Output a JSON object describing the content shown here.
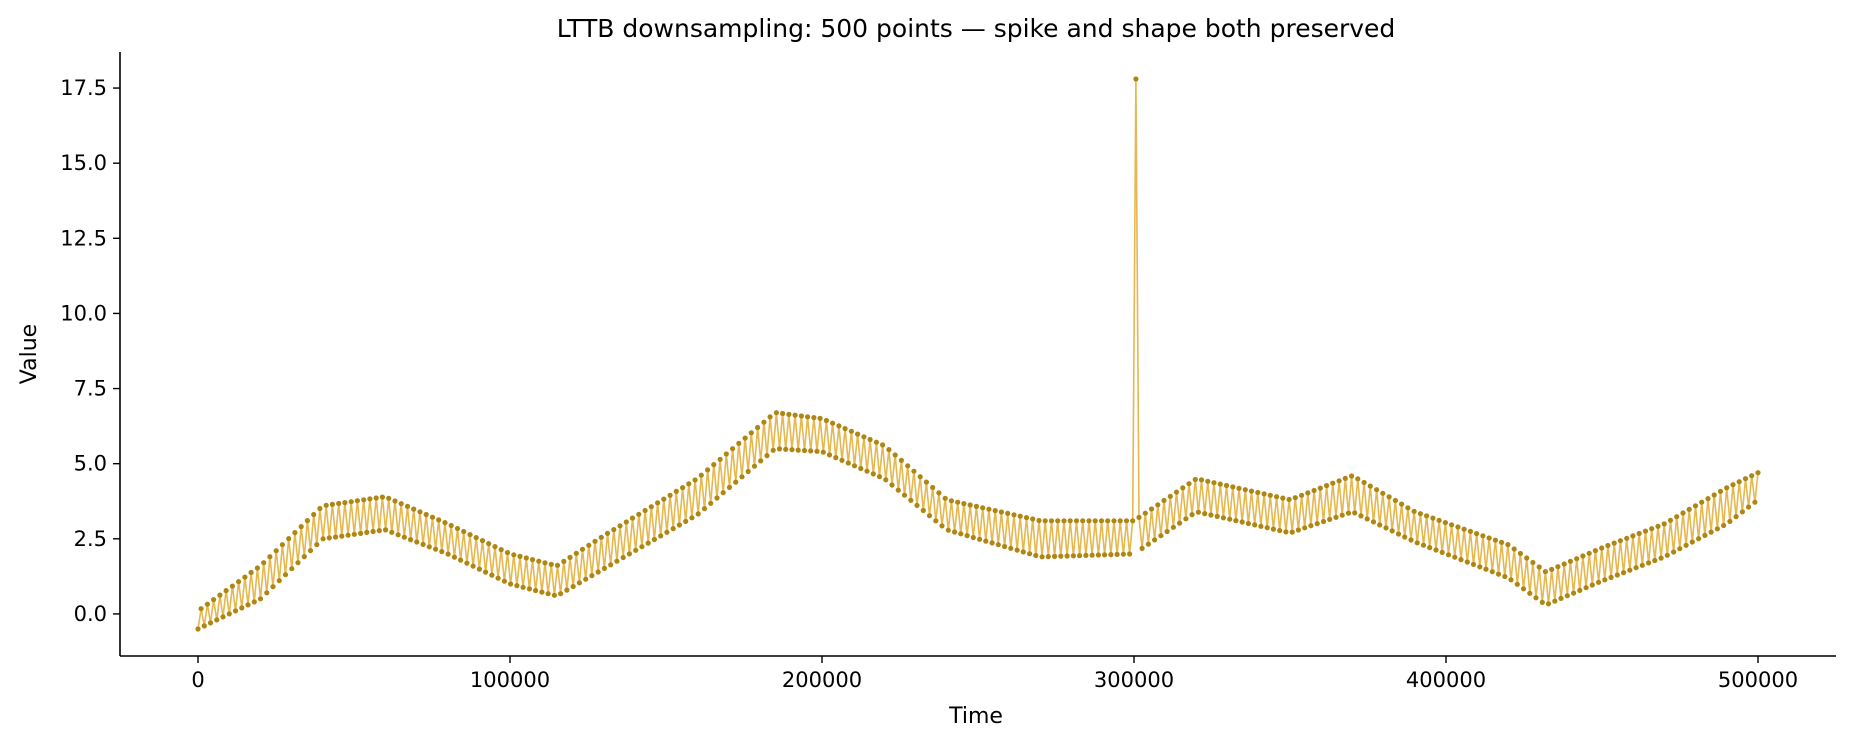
{
  "chart_data": {
    "type": "line",
    "title": "LTTB downsampling: 500 points — spike and shape both preserved",
    "xlabel": "Time",
    "ylabel": "Value",
    "xlim": [
      -25000,
      525000
    ],
    "ylim": [
      -1.4,
      18.7
    ],
    "xticks": [
      0,
      100000,
      200000,
      300000,
      400000,
      500000
    ],
    "xtick_labels": [
      "0",
      "100000",
      "200000",
      "300000",
      "400000",
      "500000"
    ],
    "yticks": [
      0.0,
      2.5,
      5.0,
      7.5,
      10.0,
      12.5,
      15.0,
      17.5
    ],
    "ytick_labels": [
      "0.0",
      "2.5",
      "5.0",
      "7.5",
      "10.0",
      "12.5",
      "15.0",
      "17.5"
    ],
    "grid": false,
    "legend": "none",
    "colors": {
      "line": "#e6b84f",
      "marker": "#b08612"
    },
    "series": [
      {
        "values": {
          "x_start": 0,
          "x_end": 500000,
          "n_points": 500,
          "spike": {
            "x": 301000,
            "y": 17.8
          },
          "envelope_low": [
            [
              0,
              -0.5
            ],
            [
              20000,
              0.5
            ],
            [
              40000,
              2.5
            ],
            [
              60000,
              2.8
            ],
            [
              80000,
              2.0
            ],
            [
              100000,
              1.0
            ],
            [
              115000,
              0.6
            ],
            [
              130000,
              1.5
            ],
            [
              160000,
              3.3
            ],
            [
              185000,
              5.5
            ],
            [
              200000,
              5.4
            ],
            [
              220000,
              4.5
            ],
            [
              240000,
              2.8
            ],
            [
              270000,
              1.9
            ],
            [
              300000,
              2.0
            ],
            [
              320000,
              3.4
            ],
            [
              350000,
              2.7
            ],
            [
              370000,
              3.4
            ],
            [
              390000,
              2.4
            ],
            [
              420000,
              1.2
            ],
            [
              432000,
              0.3
            ],
            [
              450000,
              1.1
            ],
            [
              470000,
              1.9
            ],
            [
              490000,
              3.0
            ],
            [
              500000,
              3.8
            ]
          ],
          "envelope_high": [
            [
              0,
              0.1
            ],
            [
              20000,
              1.6
            ],
            [
              40000,
              3.6
            ],
            [
              60000,
              3.9
            ],
            [
              80000,
              3.0
            ],
            [
              100000,
              2.0
            ],
            [
              115000,
              1.6
            ],
            [
              130000,
              2.6
            ],
            [
              160000,
              4.5
            ],
            [
              185000,
              6.7
            ],
            [
              200000,
              6.5
            ],
            [
              220000,
              5.6
            ],
            [
              240000,
              3.8
            ],
            [
              270000,
              3.1
            ],
            [
              300000,
              3.1
            ],
            [
              320000,
              4.5
            ],
            [
              350000,
              3.8
            ],
            [
              370000,
              4.6
            ],
            [
              390000,
              3.4
            ],
            [
              420000,
              2.3
            ],
            [
              432000,
              1.4
            ],
            [
              450000,
              2.2
            ],
            [
              470000,
              3.0
            ],
            [
              490000,
              4.2
            ],
            [
              500000,
              4.7
            ]
          ]
        }
      }
    ]
  }
}
